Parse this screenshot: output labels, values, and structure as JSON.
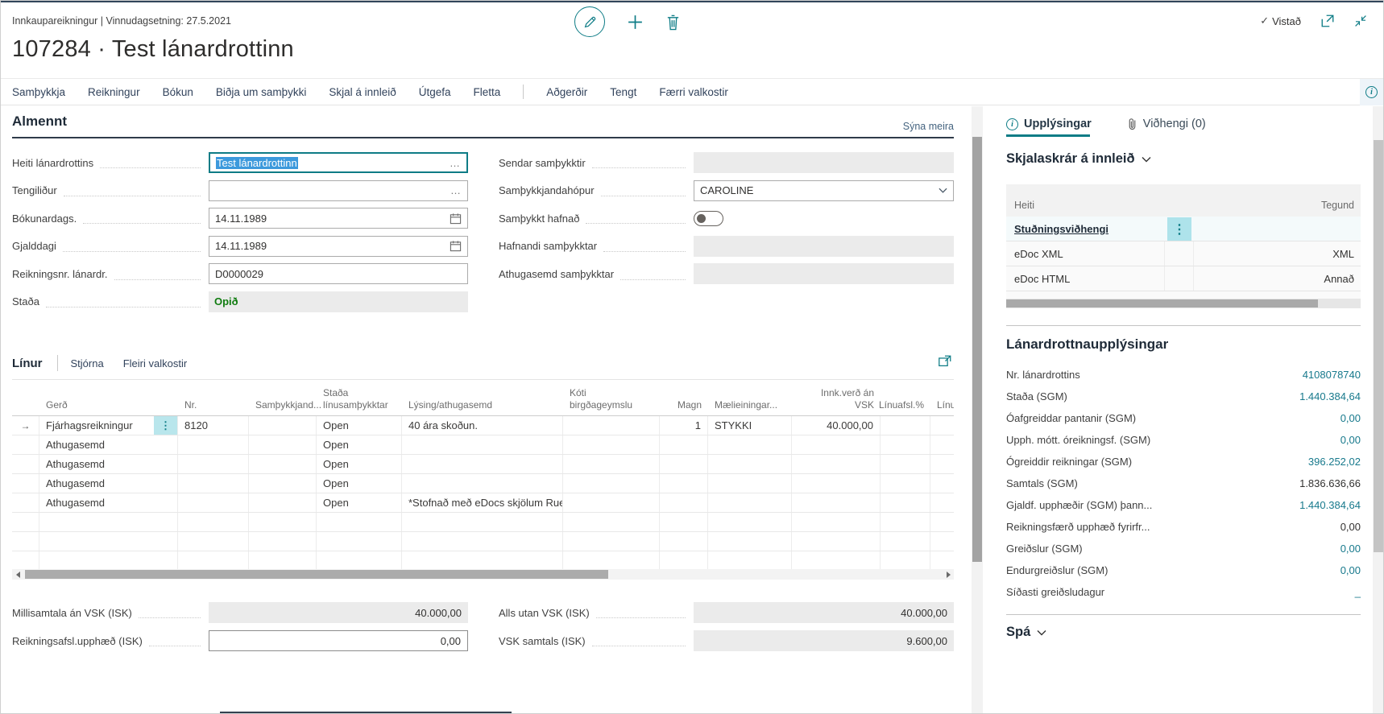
{
  "colors": {
    "accent": "#0e7c86",
    "selection": "#3c99dc",
    "status_open": "#107c10"
  },
  "header": {
    "breadcrumb": "Innkaupareikningur | Vinnudagsetning: 27.5.2021",
    "title": "107284 · Test lánardrottinn",
    "saved": "Vistað"
  },
  "menu": {
    "primary": [
      "Samþykkja",
      "Reikningur",
      "Bókun",
      "Biðja um samþykki",
      "Skjal á innleið",
      "Útgefa",
      "Fletta"
    ],
    "secondary": [
      "Aðgerðir",
      "Tengt",
      "Færri valkostir"
    ]
  },
  "general": {
    "title": "Almennt",
    "show_more": "Sýna meira",
    "left": [
      {
        "label": "Heiti lánardrottins",
        "value": "Test lánardrottinn",
        "type": "lookup-focused"
      },
      {
        "label": "Tengiliður",
        "value": "",
        "type": "lookup"
      },
      {
        "label": "Bókunardags.",
        "value": "14.11.1989",
        "type": "date"
      },
      {
        "label": "Gjalddagi",
        "value": "14.11.1989",
        "type": "date"
      },
      {
        "label": "Reikningsnr. lánardr.",
        "value": "D0000029",
        "type": "text"
      },
      {
        "label": "Staða",
        "value": "Opið",
        "type": "status"
      }
    ],
    "right": [
      {
        "label": "Sendar samþykktir",
        "value": "",
        "type": "disabled"
      },
      {
        "label": "Samþykkjandahópur",
        "value": "CAROLINE",
        "type": "combo"
      },
      {
        "label": "Samþykkt hafnað",
        "value": "off",
        "type": "toggle"
      },
      {
        "label": "Hafnandi samþykktar",
        "value": "",
        "type": "disabled"
      },
      {
        "label": "Athugasemd samþykktar",
        "value": "",
        "type": "disabled"
      }
    ]
  },
  "lines": {
    "tabs": [
      "Línur",
      "Stjórna",
      "Fleiri valkostir"
    ],
    "columns": [
      "Gerð",
      "Nr.",
      "Samþykkjand...",
      "Staða\nlínusamþykktar",
      "Lýsing/athugasemd",
      "Kóti\nbirgðageymslu",
      "Magn",
      "Mælieiningar...",
      "Innk.verð án\nVSK",
      "Línuafsl.%",
      "Línu"
    ],
    "rows": [
      {
        "current": true,
        "cells": [
          "Fjárhagsreikningur",
          "8120",
          "",
          "Open",
          "40 ára skoðun.",
          "",
          "1",
          "STYKKI",
          "40.000,00",
          "",
          ""
        ]
      },
      {
        "current": false,
        "cells": [
          "Athugasemd",
          "",
          "",
          "Open",
          "",
          "",
          "",
          "",
          "",
          "",
          ""
        ]
      },
      {
        "current": false,
        "cells": [
          "Athugasemd",
          "",
          "",
          "Open",
          "",
          "",
          "",
          "",
          "",
          "",
          ""
        ]
      },
      {
        "current": false,
        "cells": [
          "Athugasemd",
          "",
          "",
          "Open",
          "",
          "",
          "",
          "",
          "",
          "",
          ""
        ]
      },
      {
        "current": false,
        "cells": [
          "Athugasemd",
          "",
          "",
          "Open",
          "*Stofnað með eDocs skjölum Rue...",
          "",
          "",
          "",
          "",
          "",
          ""
        ]
      },
      {
        "current": false,
        "cells": [
          "",
          "",
          "",
          "",
          "",
          "",
          "",
          "",
          "",
          "",
          ""
        ]
      },
      {
        "current": false,
        "cells": [
          "",
          "",
          "",
          "",
          "",
          "",
          "",
          "",
          "",
          "",
          ""
        ]
      },
      {
        "current": false,
        "cells": [
          "",
          "",
          "",
          "",
          "",
          "",
          "",
          "",
          "",
          "",
          ""
        ]
      }
    ]
  },
  "totals": {
    "subtotal_label": "Millisamtala án VSK (ISK)",
    "subtotal_value": "40.000,00",
    "invoice_discount_label": "Reikningsafsl.upphæð (ISK)",
    "invoice_discount_value": "0,00",
    "total_excl_label": "Alls utan VSK (ISK)",
    "total_excl_value": "40.000,00",
    "vat_label": "VSK samtals (ISK)",
    "vat_value": "9.600,00"
  },
  "factbox": {
    "tabs": [
      {
        "label": "Upplýsingar",
        "active": true
      },
      {
        "label": "Viðhengi (0)",
        "active": false
      }
    ],
    "files": {
      "title": "Skjalaskrár á innleið",
      "columns": [
        "Heiti",
        "Tegund"
      ],
      "rows": [
        {
          "name": "Stuðningsviðhengi",
          "type": "",
          "emphasis": true,
          "menu": true
        },
        {
          "name": "eDoc XML",
          "type": "XML",
          "emphasis": false,
          "menu": false
        },
        {
          "name": "eDoc HTML",
          "type": "Annað",
          "emphasis": false,
          "menu": false
        }
      ]
    },
    "vendor": {
      "title": "Lánardrottnaupplýsingar",
      "fields": [
        {
          "label": "Nr. lánardrottins",
          "value": "4108078740",
          "link": true
        },
        {
          "label": "Staða (SGM)",
          "value": "1.440.384,64",
          "link": true
        },
        {
          "label": "Óafgreiddar pantanir (SGM)",
          "value": "0,00",
          "link": true
        },
        {
          "label": "Upph. mótt. óreikningsf. (SGM)",
          "value": "0,00",
          "link": true
        },
        {
          "label": "Ógreiddir reikningar (SGM)",
          "value": "396.252,02",
          "link": true
        },
        {
          "label": "Samtals (SGM)",
          "value": "1.836.636,66",
          "link": false
        },
        {
          "label": "Gjaldf. upphæðir (SGM) þann...",
          "value": "1.440.384,64",
          "link": true
        },
        {
          "label": "Reikningsfærð upphæð fyrirfr...",
          "value": "0,00",
          "link": false
        },
        {
          "label": "Greiðslur (SGM)",
          "value": "0,00",
          "link": true
        },
        {
          "label": "Endurgreiðslur (SGM)",
          "value": "0,00",
          "link": true
        },
        {
          "label": "Síðasti greiðsludagur",
          "value": "_",
          "link": true
        }
      ]
    },
    "forecast_title": "Spá"
  }
}
